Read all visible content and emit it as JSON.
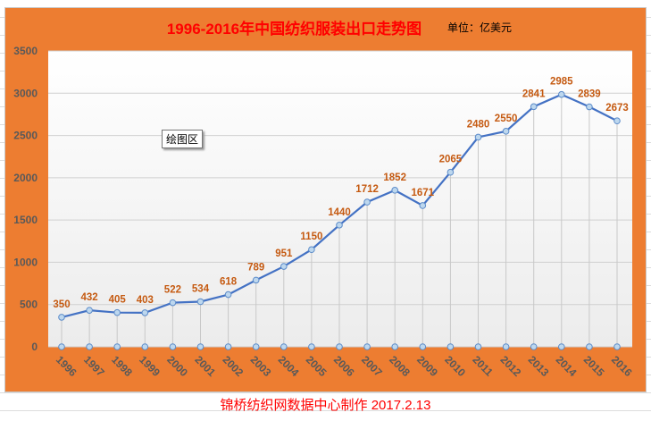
{
  "title": "1996-2016年中国纺织服装出口走势图",
  "unit": "单位：亿美元",
  "tooltip": "绘图区",
  "footer": "锦桥纺织网数据中心制作   2017.2.13",
  "colors": {
    "background": "#ed7d31",
    "line": "#4472c4",
    "data_label": "#c55a11",
    "title": "#ff0000"
  },
  "chart_data": {
    "type": "line",
    "title": "1996-2016年中国纺织服装出口走势图",
    "ylabel": "",
    "xlabel": "",
    "ylim": [
      0,
      3500
    ],
    "yticks": [
      0,
      500,
      1000,
      1500,
      2000,
      2500,
      3000,
      3500
    ],
    "grid": true,
    "categories": [
      "1996",
      "1997",
      "1998",
      "1999",
      "2000",
      "2001",
      "2002",
      "2003",
      "2004",
      "2005",
      "2006",
      "2007",
      "2008",
      "2009",
      "2010",
      "2011",
      "2012",
      "2013",
      "2014",
      "2015",
      "2016"
    ],
    "values": [
      350,
      432,
      405,
      403,
      522,
      534,
      618,
      789,
      951,
      1150,
      1440,
      1712,
      1852,
      1671,
      2065,
      2480,
      2550,
      2841,
      2985,
      2839,
      2673
    ]
  }
}
